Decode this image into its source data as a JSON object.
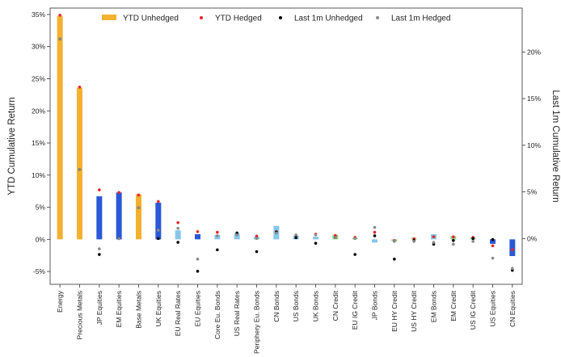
{
  "chart_data": {
    "type": "bar",
    "title": "",
    "xlabel": "",
    "ylabel": "YTD Cumulative Return",
    "y2label": "Last 1m Cumulative Return",
    "ylim": [
      -7,
      36
    ],
    "y2lim": [
      -4.9,
      24.7
    ],
    "yticks": [
      -5,
      0,
      5,
      10,
      15,
      20,
      25,
      30,
      35
    ],
    "yticklabels": [
      "-5%",
      "0%",
      "5%",
      "10%",
      "15%",
      "20%",
      "25%",
      "30%",
      "35%"
    ],
    "y2ticks": [
      0,
      5,
      10,
      15,
      20
    ],
    "y2ticklabels": [
      "0%",
      "5%",
      "10%",
      "15%",
      "20%"
    ],
    "categories": [
      "Energy",
      "Precious Metals",
      "JP Equities",
      "EM Equities",
      "Base Metals",
      "UK Equities",
      "EU Real Rates",
      "EU Equities",
      "Core Eu. Bonds",
      "US Real Rates",
      "Periphery Eu. Bonds",
      "CN Bonds",
      "US Bonds",
      "UK Bonds",
      "CN Credit",
      "EU IG Credit",
      "JP Bonds",
      "EU HY Credit",
      "US HY Credit",
      "EM Bonds",
      "EM Credit",
      "US IG Credit",
      "US Equities",
      "CN Equities"
    ],
    "bar_groups": [
      "commodity",
      "commodity",
      "equity",
      "equity",
      "commodity",
      "equity",
      "rates",
      "equity",
      "rates",
      "rates",
      "rates",
      "rates",
      "rates",
      "rates",
      "credit",
      "credit",
      "rates",
      "credit",
      "credit",
      "rates",
      "credit",
      "credit",
      "equity",
      "equity"
    ],
    "group_colors": {
      "commodity": "#f4b12f",
      "equity": "#2a58d6",
      "rates": "#86c6ea",
      "credit": "#8fd48a"
    },
    "series": [
      {
        "name": "YTD Unhedged",
        "kind": "bar",
        "axis": "left",
        "values": [
          34.8,
          23.6,
          6.7,
          7.3,
          7.0,
          5.7,
          1.4,
          0.8,
          0.7,
          0.9,
          0.4,
          2.1,
          0.6,
          0.4,
          0.7,
          0.2,
          -0.5,
          -0.3,
          0.2,
          0.8,
          0.5,
          0.3,
          -0.7,
          -2.6
        ]
      },
      {
        "name": "YTD Hedged",
        "kind": "scatter",
        "axis": "left",
        "color": "#e8252a",
        "values": [
          34.9,
          23.7,
          7.7,
          7.3,
          6.9,
          5.9,
          2.6,
          1.2,
          1.1,
          0.9,
          0.5,
          1.2,
          0.6,
          0.8,
          0.6,
          0.3,
          1.1,
          -0.2,
          0.1,
          0.4,
          0.4,
          0.3,
          -1.0,
          -1.6
        ]
      },
      {
        "name": "Last 1m Unhedged",
        "kind": "scatter",
        "axis": "right",
        "color": "#000000",
        "values": [
          21.4,
          7.4,
          -1.7,
          0.0,
          3.3,
          0.0,
          -0.4,
          -3.5,
          -1.2,
          0.6,
          -1.4,
          0.7,
          0.1,
          -0.5,
          0.1,
          -1.7,
          0.3,
          -2.2,
          -0.2,
          -0.6,
          -0.2,
          0.0,
          -0.1,
          -3.4
        ]
      },
      {
        "name": "Last 1m Hedged",
        "kind": "scatter",
        "axis": "right",
        "color": "#8a8a8a",
        "values": [
          21.4,
          7.4,
          -1.1,
          0.0,
          3.3,
          0.9,
          1.1,
          -2.2,
          0.3,
          0.4,
          0.0,
          0.6,
          0.4,
          0.4,
          0.1,
          0.0,
          1.2,
          -0.3,
          -0.3,
          -0.4,
          -0.6,
          -0.3,
          -2.1,
          -3.2
        ]
      }
    ],
    "legend": {
      "placement": "top-center",
      "labels": [
        "YTD Unhedged",
        "YTD Hedged",
        "Last 1m Unhedged",
        "Last 1m Hedged"
      ]
    },
    "grid": false
  }
}
